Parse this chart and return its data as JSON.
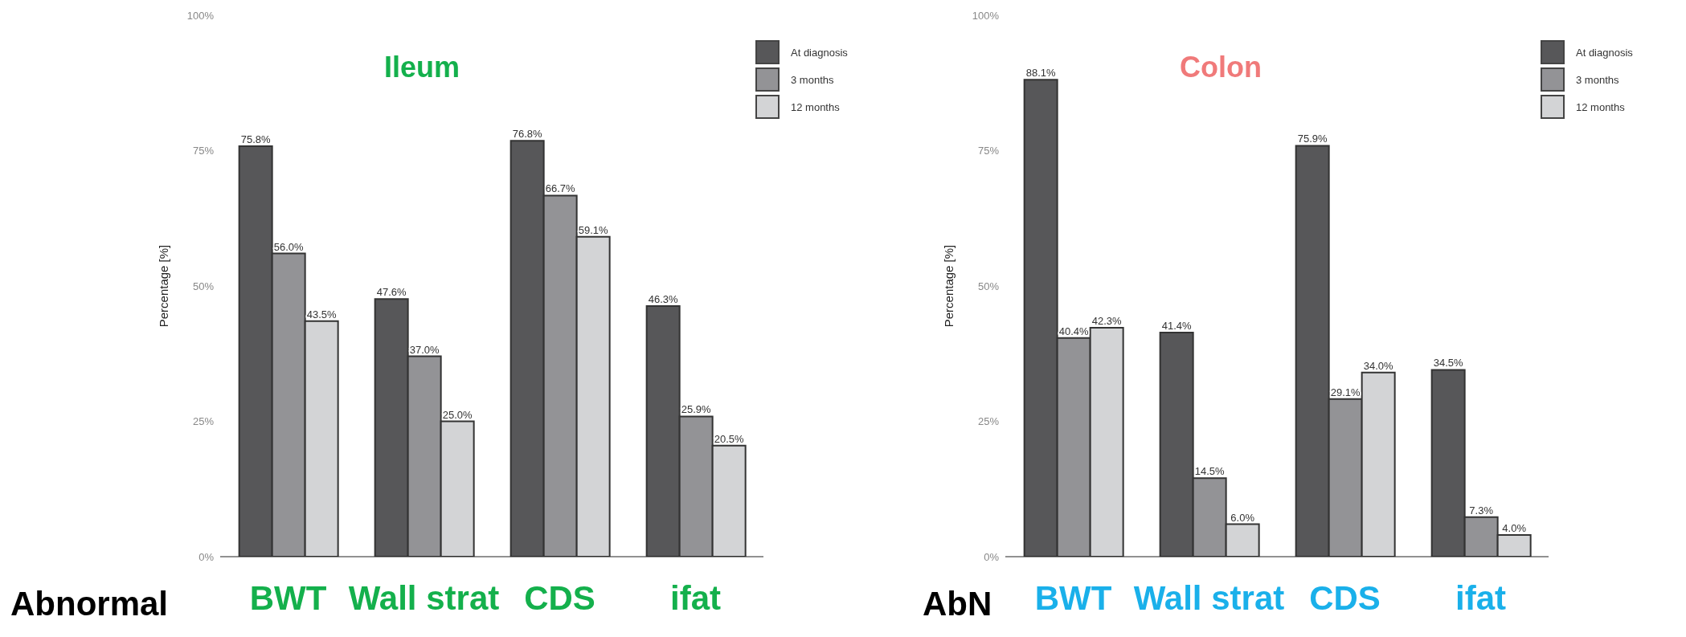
{
  "chart_data": [
    {
      "type": "bar",
      "title": "Ileum",
      "xlabel": "Abnormal",
      "ylabel": "Percentage [%]",
      "categories": [
        "BWT",
        "Wall strat",
        "CDS",
        "ifat"
      ],
      "ylim": [
        0,
        100
      ],
      "yticks": [
        {
          "value": 0,
          "label": "0%"
        },
        {
          "value": 25,
          "label": "25%"
        },
        {
          "value": 50,
          "label": "50%"
        },
        {
          "value": 75,
          "label": "75%"
        },
        {
          "value": 100,
          "label": "100%"
        }
      ],
      "grid": false,
      "legend": "top right",
      "series": [
        {
          "name": "At diagnosis",
          "color": "#575759",
          "values": [
            75.8,
            47.6,
            76.8,
            46.3
          ],
          "value_labels": [
            "75.8%",
            "47.6%",
            "76.8%",
            "46.3%"
          ]
        },
        {
          "name": "3 months",
          "color": "#939396",
          "values": [
            56.0,
            37.0,
            66.7,
            25.9
          ],
          "value_labels": [
            "56.0%",
            "37.0%",
            "66.7%",
            "25.9%"
          ]
        },
        {
          "name": "12 months",
          "color": "#d3d4d6",
          "values": [
            43.5,
            25.0,
            59.1,
            20.5
          ],
          "value_labels": [
            "43.5%",
            "25.0%",
            "59.1%",
            "20.5%"
          ]
        }
      ]
    },
    {
      "type": "bar",
      "title": "Colon",
      "xlabel": "AbN",
      "ylabel": "Percentage [%]",
      "categories": [
        "BWT",
        "Wall strat",
        "CDS",
        "ifat"
      ],
      "ylim": [
        0,
        100
      ],
      "yticks": [
        {
          "value": 0,
          "label": "0%"
        },
        {
          "value": 25,
          "label": "25%"
        },
        {
          "value": 50,
          "label": "50%"
        },
        {
          "value": 75,
          "label": "75%"
        },
        {
          "value": 100,
          "label": "100%"
        }
      ],
      "grid": false,
      "legend": "top right",
      "series": [
        {
          "name": "At diagnosis",
          "color": "#575759",
          "values": [
            88.1,
            41.4,
            75.9,
            34.5
          ],
          "value_labels": [
            "88.1%",
            "41.4%",
            "75.9%",
            "34.5%"
          ]
        },
        {
          "name": "3 months",
          "color": "#939396",
          "values": [
            40.4,
            14.5,
            29.1,
            7.3
          ],
          "value_labels": [
            "40.4%",
            "14.5%",
            "29.1%",
            "7.3%"
          ]
        },
        {
          "name": "12 months",
          "color": "#d3d4d6",
          "values": [
            42.3,
            6.0,
            34.0,
            4.0
          ],
          "value_labels": [
            "42.3%",
            "6.0%",
            "34.0%",
            "4.0%"
          ]
        }
      ]
    }
  ]
}
